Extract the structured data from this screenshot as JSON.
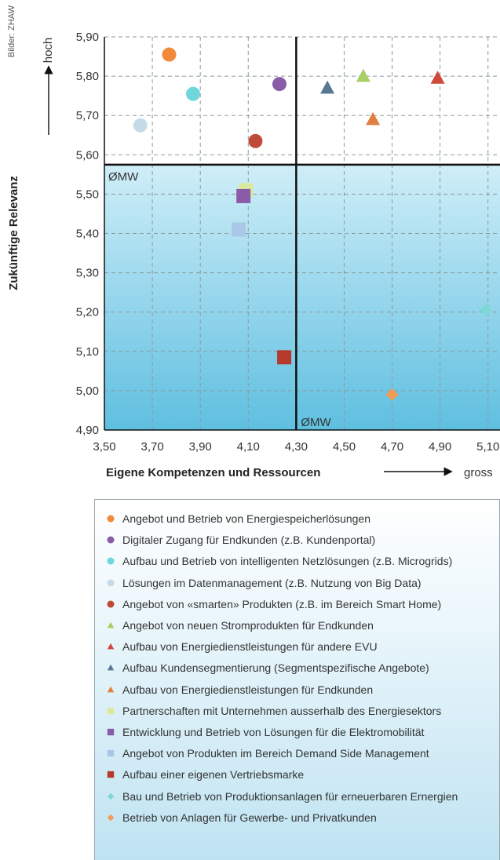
{
  "credit": "Bilder: ZHAW",
  "chart_data": {
    "type": "scatter",
    "xlabel": "Eigene Kompetenzen und Ressourcen",
    "x_arrow_label": "gross",
    "ylabel": "Zukünftige Relevanz",
    "y_arrow_label": "hoch",
    "xlim": [
      3.5,
      5.15
    ],
    "ylim": [
      4.9,
      5.9
    ],
    "x_ticks": [
      "3,50",
      "3,70",
      "3,90",
      "4,10",
      "4,30",
      "4,50",
      "4,70",
      "4,90",
      "5,10"
    ],
    "y_ticks": [
      "4,90",
      "5,00",
      "5,10",
      "5,20",
      "5,30",
      "5,40",
      "5,50",
      "5,60",
      "5,70",
      "5,80",
      "5,90"
    ],
    "grid": true,
    "mean_x": 4.3,
    "mean_y": 5.575,
    "mean_label_x": "ØMW",
    "mean_label_y": "ØMW",
    "series": [
      {
        "name": "Angebot und Betrieb von Energiespeicherlösungen",
        "marker": "circle",
        "color": "#f2893a",
        "x": 3.77,
        "y": 5.855
      },
      {
        "name": "Digitaler Zugang für Endkunden (z.B. Kundenportal)",
        "marker": "circle",
        "color": "#8a5ca8",
        "x": 4.23,
        "y": 5.78
      },
      {
        "name": "Aufbau und Betrieb von intelligenten Netzlösungen (z.B. Microgrids)",
        "marker": "circle",
        "color": "#6fd6dc",
        "x": 3.87,
        "y": 5.755
      },
      {
        "name": "Lösungen im Datenmanagement (z.B. Nutzung von Big Data)",
        "marker": "circle",
        "color": "#c6dbe8",
        "x": 3.65,
        "y": 5.675
      },
      {
        "name": "Angebot von «smarten» Produkten (z.B. im Bereich Smart Home)",
        "marker": "circle",
        "color": "#c04a38",
        "x": 4.13,
        "y": 5.635
      },
      {
        "name": "Angebot von neuen Stromprodukten für Endkunden",
        "marker": "triangle",
        "color": "#a8cf66",
        "x": 4.58,
        "y": 5.8
      },
      {
        "name": "Aufbau von Energiedienstleistungen für andere EVU",
        "marker": "triangle",
        "color": "#d04a3c",
        "x": 4.89,
        "y": 5.795
      },
      {
        "name": "Aufbau Kundensegmentierung (Segmentspezifische Angebote)",
        "marker": "triangle",
        "color": "#5a7894",
        "x": 4.43,
        "y": 5.77
      },
      {
        "name": "Aufbau von Energiedienstleistungen für Endkunden",
        "marker": "triangle",
        "color": "#e08040",
        "x": 4.62,
        "y": 5.69
      },
      {
        "name": "Partnerschaften mit Unternehmen ausserhalb des Energiesektors",
        "marker": "square",
        "color": "#dbe99a",
        "x": 4.09,
        "y": 5.51
      },
      {
        "name": "Entwicklung und Betrieb von Lösungen für die Elektromobilität",
        "marker": "square",
        "color": "#8a5ca8",
        "x": 4.08,
        "y": 5.495
      },
      {
        "name": "Angebot von Produkten im Bereich Demand Side Management",
        "marker": "square",
        "color": "#a9c8e8",
        "x": 4.06,
        "y": 5.41
      },
      {
        "name": "Aufbau einer eigenen Vertriebsmarke",
        "marker": "square",
        "color": "#b53a2c",
        "x": 4.25,
        "y": 5.085
      },
      {
        "name": "Bau und Betrieb von Produktionsanlagen für erneuerbaren Ernergien",
        "marker": "diamond",
        "color": "#7fd8d8",
        "x": 5.09,
        "y": 5.205
      },
      {
        "name": "Betrieb von Anlagen für Gewerbe- und Privatkunden",
        "marker": "diamond",
        "color": "#f39a55",
        "x": 4.7,
        "y": 4.99
      }
    ]
  }
}
